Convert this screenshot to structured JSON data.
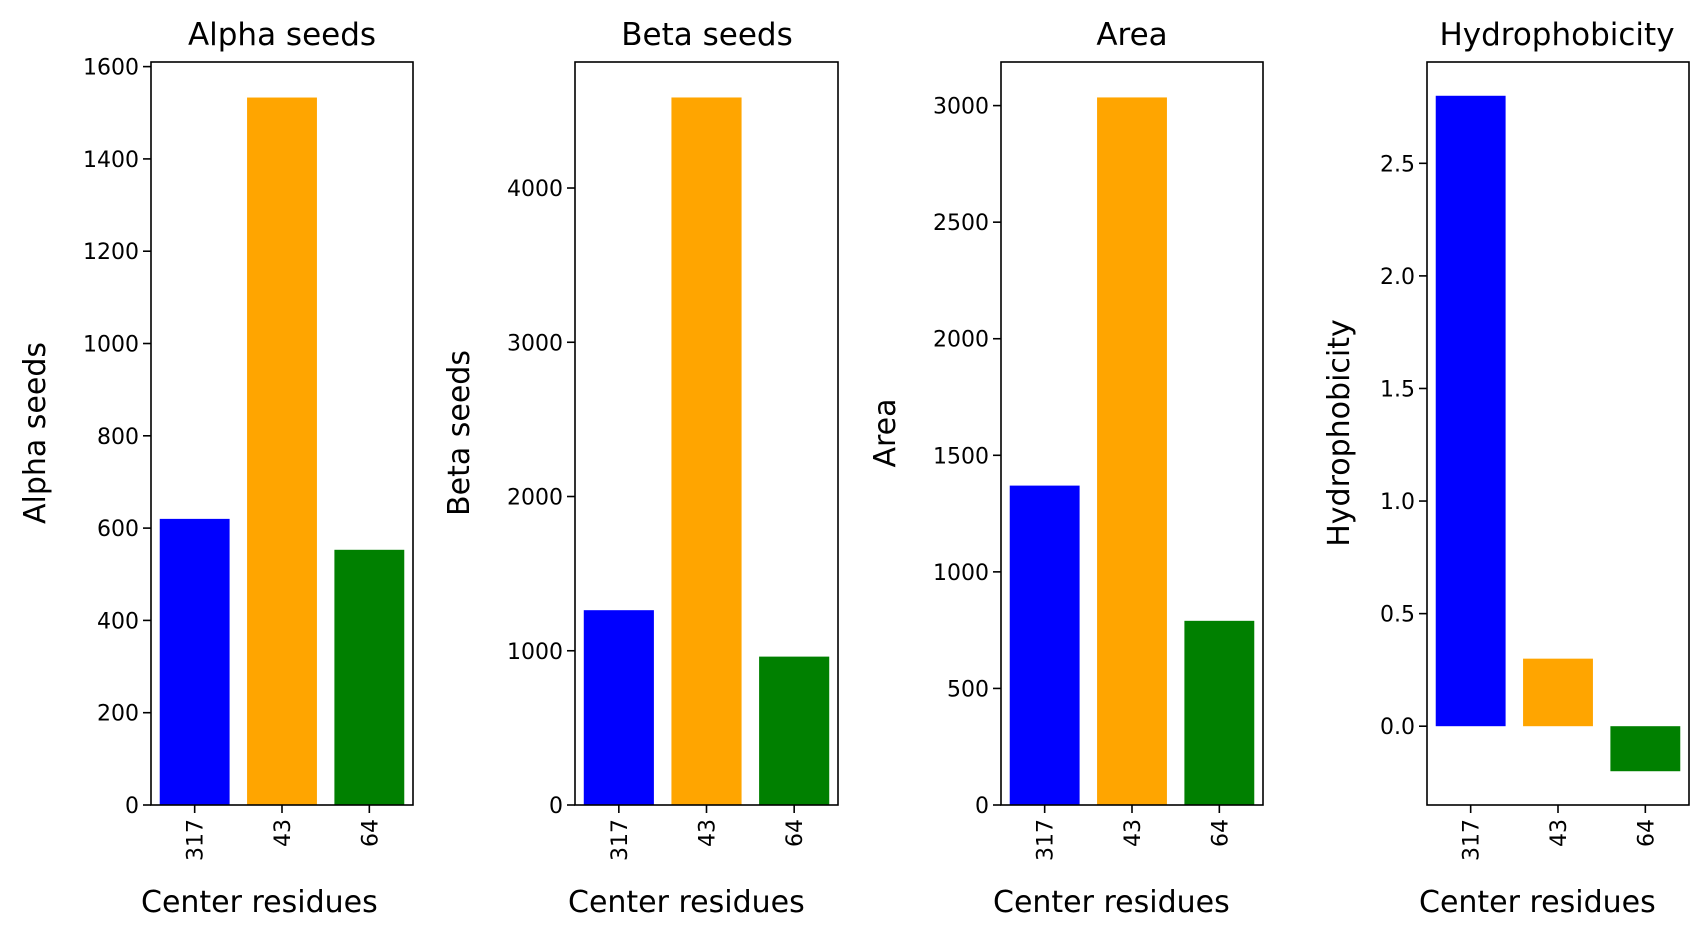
{
  "colors": {
    "bar1": "#0000ff",
    "bar2": "#ffa500",
    "bar3": "#008000",
    "axes": "#000000",
    "background": "#ffffff"
  },
  "chart_data": [
    {
      "type": "bar",
      "title": "Alpha seeds",
      "xlabel": "Center residues",
      "ylabel": "Alpha seeds",
      "categories": [
        "317",
        "43",
        "64"
      ],
      "values": [
        620,
        1533,
        553
      ],
      "colors": [
        "#0000ff",
        "#ffa500",
        "#008000"
      ],
      "ylim": [
        0,
        1610
      ],
      "yticks": [
        0,
        200,
        400,
        600,
        800,
        1000,
        1200,
        1400,
        1600
      ],
      "ytick_labels": [
        "0",
        "200",
        "400",
        "600",
        "800",
        "1000",
        "1200",
        "1400",
        "1600"
      ],
      "grid": false,
      "legend": "none"
    },
    {
      "type": "bar",
      "title": "Beta seeds",
      "xlabel": "Center residues",
      "ylabel": "Beta seeds",
      "categories": [
        "317",
        "43",
        "64"
      ],
      "values": [
        1263,
        4587,
        962
      ],
      "colors": [
        "#0000ff",
        "#ffa500",
        "#008000"
      ],
      "ylim": [
        0,
        4817
      ],
      "yticks": [
        0,
        1000,
        2000,
        3000,
        4000
      ],
      "ytick_labels": [
        "0",
        "1000",
        "2000",
        "3000",
        "4000"
      ],
      "grid": false,
      "legend": "none"
    },
    {
      "type": "bar",
      "title": "Area",
      "xlabel": "Center residues",
      "ylabel": "Area",
      "categories": [
        "317",
        "43",
        "64"
      ],
      "values": [
        1370,
        3035,
        790
      ],
      "colors": [
        "#0000ff",
        "#ffa500",
        "#008000"
      ],
      "ylim": [
        0,
        3187
      ],
      "yticks": [
        0,
        500,
        1000,
        1500,
        2000,
        2500,
        3000
      ],
      "ytick_labels": [
        "0",
        "500",
        "1000",
        "1500",
        "2000",
        "2500",
        "3000"
      ],
      "grid": false,
      "legend": "none"
    },
    {
      "type": "bar",
      "title": "Hydrophobicity",
      "xlabel": "Center residues",
      "ylabel": "Hydrophobicity",
      "categories": [
        "317",
        "43",
        "64"
      ],
      "values": [
        2.8,
        0.3,
        -0.2
      ],
      "colors": [
        "#0000ff",
        "#ffa500",
        "#008000"
      ],
      "ylim": [
        -0.35,
        2.95
      ],
      "yticks": [
        0.0,
        0.5,
        1.0,
        1.5,
        2.0,
        2.5
      ],
      "ytick_labels": [
        "0.0",
        "0.5",
        "1.0",
        "1.5",
        "2.0",
        "2.5"
      ],
      "grid": false,
      "legend": "none"
    }
  ]
}
